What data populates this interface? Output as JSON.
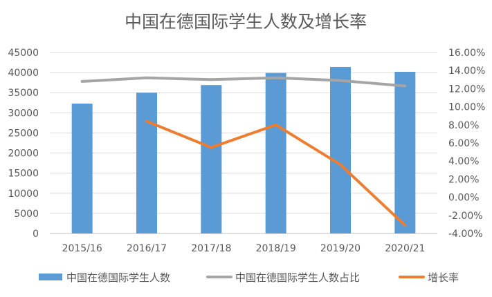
{
  "chart_data": {
    "type": "bar+line",
    "title": "中国在德国际学生人数及增长率",
    "categories": [
      "2015/16",
      "2016/17",
      "2017/18",
      "2018/19",
      "2019/20",
      "2020/21"
    ],
    "y_left": {
      "min": 0,
      "max": 45000,
      "step": 5000,
      "ticks": [
        "0",
        "5000",
        "10000",
        "15000",
        "20000",
        "25000",
        "30000",
        "35000",
        "40000",
        "45000"
      ]
    },
    "y_right": {
      "min": -4,
      "max": 16,
      "step": 2,
      "ticks": [
        "-4.00%",
        "-2.00%",
        "0.00%",
        "2.00%",
        "4.00%",
        "6.00%",
        "8.00%",
        "10.00%",
        "12.00%",
        "14.00%",
        "16.00%"
      ]
    },
    "grid": true,
    "legend_position": "bottom",
    "series": [
      {
        "name": "中国在德国际学生人数",
        "type": "bar",
        "axis": "left",
        "color": "#5B9BD5",
        "values": [
          32300,
          35000,
          36900,
          39900,
          41400,
          40200
        ]
      },
      {
        "name": "中国在德国际学生人数占比",
        "type": "line",
        "axis": "right",
        "color": "#A5A5A5",
        "values": [
          12.8,
          13.2,
          13.0,
          13.2,
          12.9,
          12.3
        ]
      },
      {
        "name": "增长率",
        "type": "line",
        "axis": "right",
        "color": "#ED7D31",
        "values": [
          null,
          8.4,
          5.5,
          8.0,
          3.6,
          -3.1
        ]
      }
    ]
  }
}
